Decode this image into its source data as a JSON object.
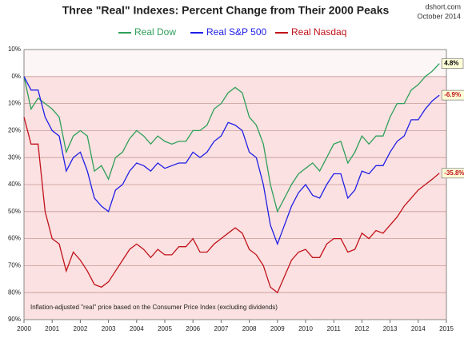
{
  "chart_data": {
    "type": "line",
    "title": "Three \"Real\" Indexes: Percent Change from Their 2000 Peaks",
    "source": "dshort.com",
    "date": "October 2014",
    "note": "Inflation-adjusted \"real\" price based on the Consumer Price Index (excluding dividends)",
    "x": [
      2000,
      2000.25,
      2000.5,
      2000.75,
      2001,
      2001.25,
      2001.5,
      2001.75,
      2002,
      2002.25,
      2002.5,
      2002.75,
      2003,
      2003.25,
      2003.5,
      2003.75,
      2004,
      2004.25,
      2004.5,
      2004.75,
      2005,
      2005.25,
      2005.5,
      2005.75,
      2006,
      2006.25,
      2006.5,
      2006.75,
      2007,
      2007.25,
      2007.5,
      2007.75,
      2008,
      2008.25,
      2008.5,
      2008.75,
      2009,
      2009.25,
      2009.5,
      2009.75,
      2010,
      2010.25,
      2010.5,
      2010.75,
      2011,
      2011.25,
      2011.5,
      2011.75,
      2012,
      2012.25,
      2012.5,
      2012.75,
      2013,
      2013.25,
      2013.5,
      2013.75,
      2014,
      2014.25,
      2014.5,
      2014.75
    ],
    "series": [
      {
        "name": "Real Dow",
        "color": "#2ea05a",
        "values": [
          0,
          -12,
          -8,
          -10,
          -12,
          -15,
          -28,
          -22,
          -20,
          -22,
          -35,
          -33,
          -38,
          -30,
          -28,
          -23,
          -20,
          -22,
          -25,
          -22,
          -24,
          -25,
          -24,
          -24,
          -20,
          -20,
          -18,
          -12,
          -10,
          -6,
          -4,
          -6,
          -15,
          -18,
          -25,
          -40,
          -50,
          -45,
          -40,
          -36,
          -34,
          -32,
          -35,
          -30,
          -25,
          -24,
          -32,
          -28,
          -22,
          -25,
          -22,
          -22,
          -15,
          -10,
          -10,
          -5,
          -3,
          0,
          2,
          4.8
        ]
      },
      {
        "name": "Real S&P 500",
        "color": "#1f1fe6",
        "values": [
          0,
          -5,
          -5,
          -15,
          -20,
          -22,
          -35,
          -30,
          -28,
          -35,
          -45,
          -48,
          -50,
          -42,
          -40,
          -35,
          -32,
          -33,
          -35,
          -32,
          -34,
          -33,
          -32,
          -32,
          -28,
          -30,
          -28,
          -24,
          -22,
          -17,
          -18,
          -20,
          -28,
          -30,
          -40,
          -55,
          -62,
          -55,
          -48,
          -43,
          -40,
          -44,
          -45,
          -40,
          -36,
          -36,
          -45,
          -42,
          -35,
          -36,
          -33,
          -33,
          -28,
          -24,
          -22,
          -16,
          -16,
          -12,
          -9,
          -6.9
        ]
      },
      {
        "name": "Real Nasdaq",
        "color": "#c0121a",
        "values": [
          -15,
          -25,
          -25,
          -50,
          -60,
          -62,
          -72,
          -65,
          -68,
          -72,
          -77,
          -78,
          -76,
          -72,
          -68,
          -64,
          -62,
          -64,
          -67,
          -64,
          -66,
          -66,
          -63,
          -63,
          -60,
          -65,
          -65,
          -62,
          -60,
          -58,
          -56,
          -58,
          -64,
          -66,
          -70,
          -78,
          -80,
          -74,
          -68,
          -65,
          -64,
          -67,
          -67,
          -62,
          -60,
          -60,
          -65,
          -64,
          -58,
          -60,
          -57,
          -58,
          -55,
          -52,
          -48,
          -45,
          -42,
          -40,
          -38,
          -35.8
        ]
      }
    ],
    "annotations": [
      {
        "text": "4.8%",
        "x": 2014.75,
        "y": 4.8,
        "color": "#000000"
      },
      {
        "text": "-6.9%",
        "x": 2014.75,
        "y": -6.9,
        "color": "#c0121a"
      },
      {
        "text": "-35.8%",
        "x": 2014.75,
        "y": -35.8,
        "color": "#c0121a"
      }
    ],
    "xlim": [
      2000,
      2015
    ],
    "xticks": [
      2000,
      2001,
      2002,
      2003,
      2004,
      2005,
      2006,
      2007,
      2008,
      2009,
      2010,
      2011,
      2012,
      2013,
      2014,
      2015
    ],
    "ylim": [
      -90,
      10
    ],
    "yticks": [
      {
        "value": 10,
        "label": "10%"
      },
      {
        "value": 0,
        "label": "0%"
      },
      {
        "value": -10,
        "label": "10%"
      },
      {
        "value": -20,
        "label": "20%"
      },
      {
        "value": -30,
        "label": "30%"
      },
      {
        "value": -40,
        "label": "40%"
      },
      {
        "value": -50,
        "label": "50%"
      },
      {
        "value": -60,
        "label": "60%"
      },
      {
        "value": -70,
        "label": "70%"
      },
      {
        "value": -80,
        "label": "80%"
      },
      {
        "value": -90,
        "label": "90%"
      }
    ],
    "grid": true
  }
}
